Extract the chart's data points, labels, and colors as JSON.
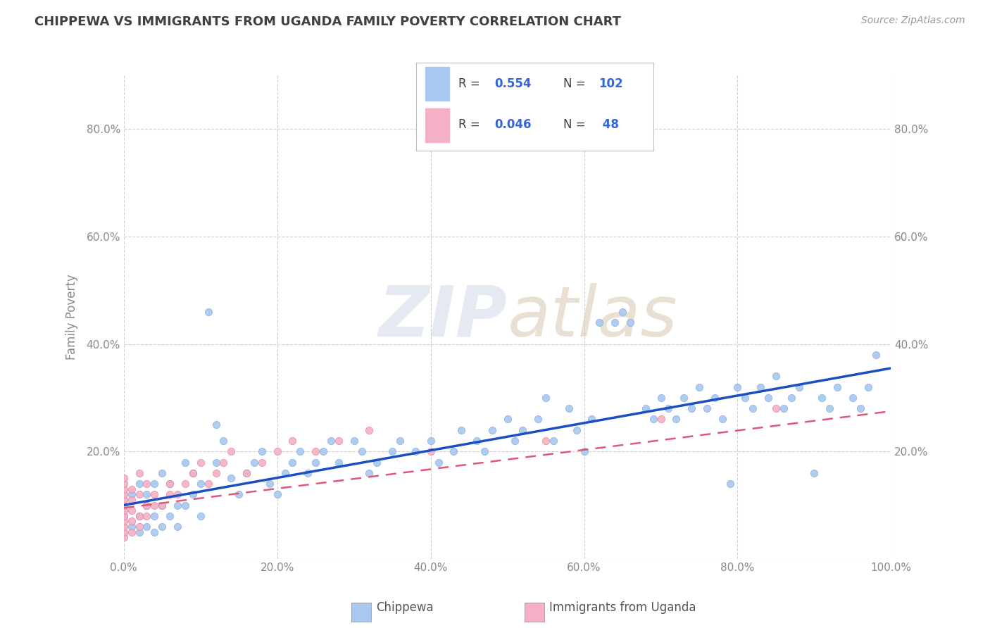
{
  "title": "CHIPPEWA VS IMMIGRANTS FROM UGANDA FAMILY POVERTY CORRELATION CHART",
  "source": "Source: ZipAtlas.com",
  "ylabel": "Family Poverty",
  "xlim": [
    0.0,
    1.0
  ],
  "ylim": [
    0.0,
    0.9
  ],
  "xtick_vals": [
    0.0,
    0.2,
    0.4,
    0.6,
    0.8,
    1.0
  ],
  "xtick_labels": [
    "0.0%",
    "20.0%",
    "40.0%",
    "60.0%",
    "80.0%",
    "100.0%"
  ],
  "ytick_vals": [
    0.0,
    0.2,
    0.4,
    0.6,
    0.8
  ],
  "ytick_labels": [
    "",
    "20.0%",
    "40.0%",
    "60.0%",
    "80.0%"
  ],
  "chippewa_color": "#a8c8f0",
  "chippewa_edge": "#7aaad8",
  "uganda_color": "#f5b0c5",
  "uganda_edge": "#d880a0",
  "chippewa_line_color": "#1a4fc4",
  "uganda_line_color": "#e05878",
  "legend_R1": "0.554",
  "legend_N1": "102",
  "legend_R2": "0.046",
  "legend_N2": " 48",
  "watermark_zip": "ZIP",
  "watermark_atlas": "atlas",
  "background_color": "#ffffff",
  "grid_color": "#d0d0d0",
  "title_color": "#404040",
  "axis_color": "#888888",
  "legend_text_color": "#404040",
  "legend_val_color": "#3366dd",
  "bottom_legend_label1": "Chippewa",
  "bottom_legend_label2": "Immigrants from Uganda",
  "chip_line_y0": 0.1,
  "chip_line_y1": 0.355,
  "ug_line_y0": 0.095,
  "ug_line_y1": 0.275
}
